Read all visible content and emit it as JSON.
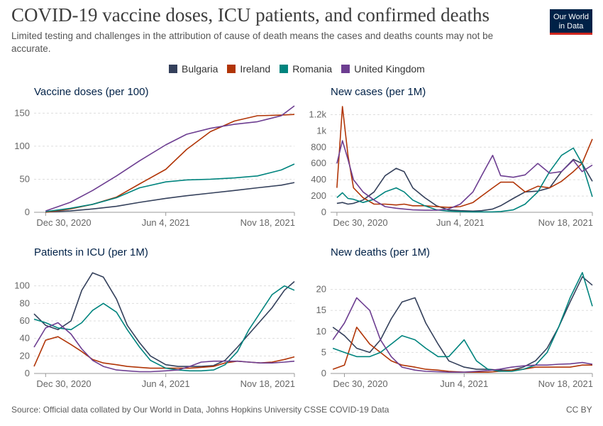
{
  "header": {
    "title": "COVID-19 vaccine doses, ICU patients, and confirmed deaths",
    "subtitle": "Limited testing and challenges in the attribution of cause of death means the cases and deaths counts may not be accurate.",
    "logo_line1": "Our World",
    "logo_line2": "in Data"
  },
  "legend": [
    {
      "name": "Bulgaria",
      "color": "#34405b"
    },
    {
      "name": "Ireland",
      "color": "#b13507"
    },
    {
      "name": "Romania",
      "color": "#00847e"
    },
    {
      "name": "United Kingdom",
      "color": "#6d3e91"
    }
  ],
  "footer": {
    "source": "Source: Official data collated by Our World in Data, Johns Hopkins University CSSE COVID-19 Data",
    "license": "CC BY"
  },
  "chart_data": [
    {
      "type": "line",
      "title": "Vaccine doses (per 100)",
      "x": [
        "2020-12-30",
        "2021-01-31",
        "2021-03-01",
        "2021-04-01",
        "2021-05-01",
        "2021-06-04",
        "2021-07-01",
        "2021-08-01",
        "2021-09-01",
        "2021-10-01",
        "2021-11-01",
        "2021-11-18"
      ],
      "xticks": [
        "Dec 30, 2020",
        "Jun 4, 2021",
        "Nov 18, 2021"
      ],
      "ylim": [
        0,
        160
      ],
      "yticks": [
        0,
        50,
        100,
        150
      ],
      "ytick_labels": [
        "0",
        "50",
        "100",
        "150"
      ],
      "series": [
        {
          "name": "Bulgaria",
          "values": [
            0.5,
            2,
            5,
            9,
            15,
            21,
            25,
            29,
            33,
            37,
            41,
            45
          ]
        },
        {
          "name": "Ireland",
          "values": [
            0,
            5,
            12,
            23,
            43,
            65,
            95,
            122,
            138,
            146,
            147,
            148
          ]
        },
        {
          "name": "Romania",
          "values": [
            1,
            6,
            12,
            22,
            37,
            46,
            49,
            50,
            52,
            55,
            64,
            73
          ]
        },
        {
          "name": "United Kingdom",
          "values": [
            2,
            15,
            33,
            55,
            78,
            102,
            118,
            127,
            133,
            137,
            146,
            161
          ]
        }
      ]
    },
    {
      "type": "line",
      "title": "New cases (per 1M)",
      "x": [
        "2020-12-30",
        "2021-01-06",
        "2021-01-13",
        "2021-01-20",
        "2021-02-01",
        "2021-02-15",
        "2021-03-01",
        "2021-03-15",
        "2021-03-25",
        "2021-04-05",
        "2021-04-20",
        "2021-05-05",
        "2021-05-20",
        "2021-06-04",
        "2021-06-20",
        "2021-07-01",
        "2021-07-15",
        "2021-07-25",
        "2021-08-10",
        "2021-08-25",
        "2021-09-10",
        "2021-09-25",
        "2021-10-10",
        "2021-10-25",
        "2021-11-05",
        "2021-11-18"
      ],
      "xticks": [
        "Dec 30, 2020",
        "Jun 4, 2021",
        "Nov 18, 2021"
      ],
      "ylim": [
        0,
        1300
      ],
      "yticks": [
        0,
        200,
        400,
        600,
        800,
        1000,
        1200
      ],
      "ytick_labels": [
        "0",
        "200",
        "400",
        "600",
        "800",
        "1k",
        "1.2k"
      ],
      "series": [
        {
          "name": "Bulgaria",
          "values": [
            110,
            120,
            100,
            110,
            150,
            250,
            450,
            540,
            500,
            300,
            180,
            80,
            30,
            20,
            15,
            20,
            40,
            80,
            170,
            250,
            260,
            300,
            500,
            650,
            600,
            380
          ]
        },
        {
          "name": "Ireland",
          "values": [
            300,
            1300,
            700,
            300,
            180,
            100,
            100,
            90,
            100,
            80,
            80,
            70,
            60,
            70,
            120,
            200,
            300,
            370,
            370,
            250,
            320,
            300,
            380,
            500,
            600,
            900
          ]
        },
        {
          "name": "Romania",
          "values": [
            180,
            240,
            170,
            160,
            120,
            160,
            250,
            300,
            250,
            150,
            80,
            30,
            15,
            10,
            5,
            5,
            5,
            10,
            30,
            100,
            250,
            500,
            700,
            790,
            600,
            190
          ]
        },
        {
          "name": "United Kingdom",
          "values": [
            600,
            880,
            650,
            400,
            250,
            150,
            70,
            50,
            40,
            30,
            25,
            25,
            40,
            100,
            250,
            450,
            700,
            450,
            430,
            460,
            600,
            480,
            500,
            640,
            500,
            580
          ]
        }
      ]
    },
    {
      "type": "line",
      "title": "Patients in ICU (per 1M)",
      "x": [
        "2020-12-15",
        "2020-12-30",
        "2021-01-15",
        "2021-02-01",
        "2021-02-15",
        "2021-03-01",
        "2021-03-15",
        "2021-04-01",
        "2021-04-15",
        "2021-05-01",
        "2021-05-15",
        "2021-06-04",
        "2021-06-20",
        "2021-07-05",
        "2021-07-20",
        "2021-08-05",
        "2021-08-20",
        "2021-09-05",
        "2021-09-20",
        "2021-10-05",
        "2021-10-20",
        "2021-11-05",
        "2021-11-18"
      ],
      "xticks": [
        "Dec 30, 2020",
        "Jun 4, 2021",
        "Nov 18, 2021"
      ],
      "ylim": [
        0,
        120
      ],
      "yticks": [
        0,
        20,
        40,
        60,
        80,
        100
      ],
      "ytick_labels": [
        "0",
        "20",
        "40",
        "60",
        "80",
        "100"
      ],
      "series": [
        {
          "name": "Bulgaria",
          "values": [
            68,
            55,
            50,
            60,
            95,
            115,
            110,
            85,
            55,
            35,
            20,
            10,
            8,
            8,
            8,
            9,
            15,
            30,
            45,
            60,
            75,
            95,
            105
          ]
        },
        {
          "name": "Ireland",
          "values": [
            8,
            38,
            42,
            33,
            25,
            16,
            12,
            10,
            8,
            7,
            6,
            6,
            6,
            6,
            7,
            8,
            12,
            14,
            13,
            12,
            13,
            16,
            19
          ]
        },
        {
          "name": "Romania",
          "values": [
            62,
            58,
            52,
            50,
            58,
            72,
            80,
            70,
            50,
            30,
            15,
            6,
            4,
            3,
            3,
            4,
            10,
            25,
            50,
            70,
            90,
            100,
            95
          ]
        },
        {
          "name": "United Kingdom",
          "values": [
            30,
            52,
            58,
            45,
            28,
            15,
            8,
            4,
            3,
            2,
            2,
            3,
            4,
            8,
            13,
            14,
            14,
            14,
            13,
            12,
            12,
            13,
            14
          ]
        }
      ]
    },
    {
      "type": "line",
      "title": "New deaths (per 1M)",
      "x": [
        "2020-12-15",
        "2020-12-30",
        "2021-01-15",
        "2021-02-01",
        "2021-02-15",
        "2021-03-01",
        "2021-03-15",
        "2021-04-01",
        "2021-04-15",
        "2021-05-01",
        "2021-05-15",
        "2021-06-04",
        "2021-06-20",
        "2021-07-05",
        "2021-07-20",
        "2021-08-05",
        "2021-08-20",
        "2021-09-05",
        "2021-09-20",
        "2021-10-05",
        "2021-10-20",
        "2021-11-05",
        "2021-11-18"
      ],
      "xticks": [
        "Dec 30, 2020",
        "Jun 4, 2021",
        "Nov 18, 2021"
      ],
      "ylim": [
        0,
        25
      ],
      "yticks": [
        0,
        5,
        10,
        15,
        20
      ],
      "ytick_labels": [
        "0",
        "5",
        "10",
        "15",
        "20"
      ],
      "series": [
        {
          "name": "Bulgaria",
          "values": [
            11,
            9,
            6,
            5,
            8,
            13,
            17,
            18,
            12,
            7,
            3,
            1.5,
            1,
            1,
            0.8,
            0.8,
            1.5,
            3,
            6,
            11,
            17,
            23,
            21
          ]
        },
        {
          "name": "Ireland",
          "values": [
            1,
            2,
            11,
            7,
            5,
            3,
            2,
            1.5,
            1,
            0.8,
            0.5,
            0.3,
            0.3,
            0.3,
            0.5,
            0.8,
            1,
            1.5,
            1.5,
            1.5,
            1.5,
            2,
            2
          ]
        },
        {
          "name": "Romania",
          "values": [
            6,
            5,
            4,
            4,
            5,
            7,
            9,
            8,
            6,
            4,
            4,
            8,
            3,
            1,
            0.5,
            0.5,
            1,
            2,
            5,
            11,
            18,
            24,
            16
          ]
        },
        {
          "name": "United Kingdom",
          "values": [
            8,
            12,
            18,
            15,
            8,
            4,
            1.5,
            0.8,
            0.5,
            0.4,
            0.3,
            0.3,
            0.5,
            0.7,
            1,
            1.5,
            1.8,
            2,
            2,
            2.2,
            2.3,
            2.6,
            2.2
          ]
        }
      ]
    }
  ]
}
